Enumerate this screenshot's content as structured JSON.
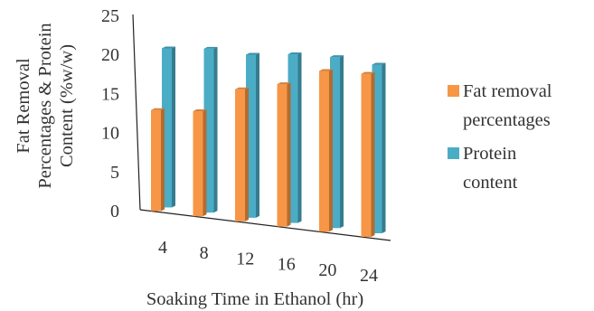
{
  "chart_data": {
    "type": "bar",
    "categories": [
      "4",
      "8",
      "12",
      "16",
      "20",
      "24"
    ],
    "series": [
      {
        "name": "Fat removal percentages",
        "legend_lines": [
          "Fat removal",
          "percentages"
        ],
        "color": "#F79646",
        "values": [
          12.7,
          13.2,
          16.6,
          17.9,
          20.2,
          20.5
        ]
      },
      {
        "name": "Protein content",
        "legend_lines": [
          "Protein",
          "content"
        ],
        "color": "#4BACC6",
        "values": [
          20.0,
          20.6,
          20.5,
          21.2,
          21.5,
          21.2
        ]
      }
    ],
    "y_ticks": [
      "0",
      "5",
      "10",
      "15",
      "20",
      "25"
    ],
    "ylim": [
      0,
      25
    ],
    "ylabel_lines": [
      "Fat Removal",
      "Percentages & Protein",
      "Content (%w/w)"
    ],
    "xlabel": "Soaking Time in Ethanol (hr)",
    "legend_position": "right",
    "grid": false,
    "perspective": "3d"
  }
}
